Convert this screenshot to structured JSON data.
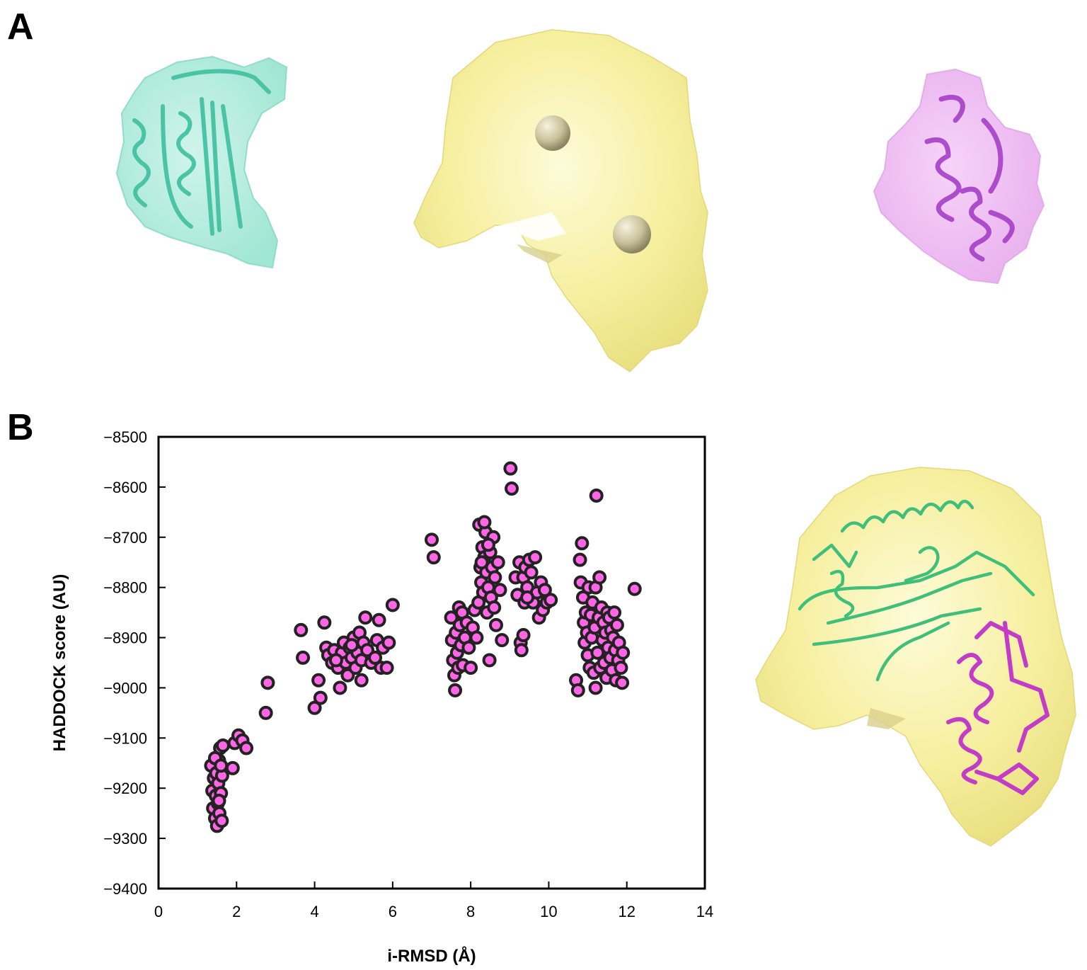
{
  "panels": {
    "a_label": "A",
    "b_label": "B"
  },
  "colors": {
    "teal_protein": "#5fd3b9",
    "density_map": "#f6f0a8",
    "magenta_protein": "#e07de6",
    "point_fill": "#ff66e6",
    "point_stroke": "#222222",
    "green_ribbon": "#3fbf7a",
    "magenta_ribbon": "#c23cc8"
  },
  "chart_data": {
    "type": "scatter",
    "xlabel": "i-RMSD (Å)",
    "ylabel": "HADDOCK score (AU)",
    "xlim": [
      0,
      14
    ],
    "ylim": [
      -9400,
      -8500
    ],
    "x_ticks": [
      "0",
      "2",
      "4",
      "6",
      "8",
      "10",
      "12",
      "14"
    ],
    "y_ticks": [
      "−8500",
      "−8600",
      "−8700",
      "−8800",
      "−8900",
      "−9000",
      "−9100",
      "−9200",
      "−9300",
      "−9400"
    ],
    "grid": false,
    "series": [
      {
        "points": [
          [
            1.35,
            -9155
          ],
          [
            1.38,
            -9205
          ],
          [
            1.4,
            -9240
          ],
          [
            1.42,
            -9180
          ],
          [
            1.45,
            -9260
          ],
          [
            1.47,
            -9215
          ],
          [
            1.48,
            -9170
          ],
          [
            1.5,
            -9275
          ],
          [
            1.52,
            -9230
          ],
          [
            1.53,
            -9190
          ],
          [
            1.55,
            -9145
          ],
          [
            1.56,
            -9250
          ],
          [
            1.58,
            -9120
          ],
          [
            1.6,
            -9210
          ],
          [
            1.62,
            -9265
          ],
          [
            1.63,
            -9175
          ],
          [
            1.65,
            -9115
          ],
          [
            1.45,
            -9140
          ],
          [
            1.55,
            -9225
          ],
          [
            1.6,
            -9155
          ],
          [
            1.9,
            -9160
          ],
          [
            1.95,
            -9110
          ],
          [
            2.05,
            -9095
          ],
          [
            2.15,
            -9105
          ],
          [
            2.25,
            -9120
          ],
          [
            2.75,
            -9050
          ],
          [
            2.8,
            -8990
          ],
          [
            3.65,
            -8885
          ],
          [
            3.7,
            -8940
          ],
          [
            4.0,
            -9040
          ],
          [
            4.1,
            -8985
          ],
          [
            4.15,
            -9020
          ],
          [
            4.25,
            -8870
          ],
          [
            4.3,
            -8920
          ],
          [
            4.35,
            -8935
          ],
          [
            4.45,
            -8950
          ],
          [
            4.5,
            -8925
          ],
          [
            4.6,
            -8960
          ],
          [
            4.65,
            -9000
          ],
          [
            4.7,
            -8930
          ],
          [
            4.75,
            -8910
          ],
          [
            4.8,
            -8950
          ],
          [
            4.85,
            -8975
          ],
          [
            4.9,
            -8920
          ],
          [
            4.95,
            -8940
          ],
          [
            5.0,
            -8900
          ],
          [
            5.05,
            -8960
          ],
          [
            5.1,
            -8930
          ],
          [
            5.15,
            -8890
          ],
          [
            5.2,
            -8945
          ],
          [
            5.25,
            -8910
          ],
          [
            5.3,
            -8860
          ],
          [
            5.35,
            -8925
          ],
          [
            5.45,
            -8950
          ],
          [
            5.55,
            -8940
          ],
          [
            5.6,
            -8905
          ],
          [
            5.65,
            -8865
          ],
          [
            5.7,
            -8960
          ],
          [
            5.75,
            -8920
          ],
          [
            5.85,
            -8960
          ],
          [
            5.9,
            -8910
          ],
          [
            6.0,
            -8835
          ],
          [
            4.55,
            -8945
          ],
          [
            4.95,
            -8915
          ],
          [
            5.2,
            -8985
          ],
          [
            7.0,
            -8705
          ],
          [
            7.05,
            -8740
          ],
          [
            7.5,
            -8860
          ],
          [
            7.52,
            -8905
          ],
          [
            7.55,
            -8945
          ],
          [
            7.58,
            -8975
          ],
          [
            7.6,
            -9005
          ],
          [
            7.62,
            -8890
          ],
          [
            7.65,
            -8930
          ],
          [
            7.68,
            -8960
          ],
          [
            7.7,
            -8840
          ],
          [
            7.72,
            -8875
          ],
          [
            7.75,
            -8915
          ],
          [
            7.78,
            -8850
          ],
          [
            7.8,
            -8955
          ],
          [
            7.85,
            -8900
          ],
          [
            7.9,
            -8870
          ],
          [
            7.95,
            -8920
          ],
          [
            8.0,
            -8960
          ],
          [
            8.05,
            -8880
          ],
          [
            8.1,
            -8845
          ],
          [
            8.15,
            -8900
          ],
          [
            8.2,
            -8830
          ],
          [
            8.22,
            -8675
          ],
          [
            8.25,
            -8760
          ],
          [
            8.27,
            -8790
          ],
          [
            8.3,
            -8720
          ],
          [
            8.32,
            -8810
          ],
          [
            8.35,
            -8740
          ],
          [
            8.38,
            -8690
          ],
          [
            8.4,
            -8770
          ],
          [
            8.42,
            -8850
          ],
          [
            8.45,
            -8800
          ],
          [
            8.48,
            -8945
          ],
          [
            8.5,
            -8730
          ],
          [
            8.52,
            -8820
          ],
          [
            8.55,
            -8760
          ],
          [
            8.58,
            -8700
          ],
          [
            8.6,
            -8840
          ],
          [
            8.62,
            -8780
          ],
          [
            8.65,
            -8875
          ],
          [
            8.7,
            -8750
          ],
          [
            8.75,
            -8805
          ],
          [
            8.8,
            -8905
          ],
          [
            8.35,
            -8670
          ],
          [
            8.28,
            -8750
          ],
          [
            8.45,
            -8715
          ],
          [
            9.02,
            -8563
          ],
          [
            9.05,
            -8603
          ],
          [
            9.15,
            -8780
          ],
          [
            9.2,
            -8815
          ],
          [
            9.25,
            -8750
          ],
          [
            9.28,
            -8910
          ],
          [
            9.3,
            -8925
          ],
          [
            9.35,
            -8780
          ],
          [
            9.38,
            -8830
          ],
          [
            9.4,
            -8760
          ],
          [
            9.45,
            -8800
          ],
          [
            9.5,
            -8745
          ],
          [
            9.55,
            -8770
          ],
          [
            9.6,
            -8830
          ],
          [
            9.65,
            -8740
          ],
          [
            9.7,
            -8810
          ],
          [
            9.75,
            -8860
          ],
          [
            9.8,
            -8790
          ],
          [
            9.85,
            -8845
          ],
          [
            9.9,
            -8805
          ],
          [
            9.95,
            -8830
          ],
          [
            10.05,
            -8825
          ],
          [
            9.35,
            -8895
          ],
          [
            9.45,
            -8820
          ],
          [
            10.7,
            -8985
          ],
          [
            10.75,
            -9005
          ],
          [
            10.8,
            -8745
          ],
          [
            10.82,
            -8790
          ],
          [
            10.85,
            -8712
          ],
          [
            10.88,
            -8820
          ],
          [
            10.9,
            -8870
          ],
          [
            10.92,
            -8910
          ],
          [
            10.95,
            -8850
          ],
          [
            10.98,
            -8890
          ],
          [
            11.0,
            -8935
          ],
          [
            11.02,
            -8800
          ],
          [
            11.05,
            -8960
          ],
          [
            11.08,
            -8855
          ],
          [
            11.1,
            -8900
          ],
          [
            11.12,
            -8830
          ],
          [
            11.15,
            -8970
          ],
          [
            11.18,
            -8880
          ],
          [
            11.2,
            -8800
          ],
          [
            11.22,
            -8617
          ],
          [
            11.25,
            -8930
          ],
          [
            11.28,
            -8860
          ],
          [
            11.3,
            -8780
          ],
          [
            11.32,
            -8960
          ],
          [
            11.35,
            -8840
          ],
          [
            11.38,
            -8905
          ],
          [
            11.4,
            -8870
          ],
          [
            11.42,
            -8950
          ],
          [
            11.45,
            -8890
          ],
          [
            11.48,
            -8980
          ],
          [
            11.5,
            -8850
          ],
          [
            11.52,
            -8920
          ],
          [
            11.55,
            -8860
          ],
          [
            11.58,
            -8940
          ],
          [
            11.6,
            -8885
          ],
          [
            11.62,
            -8965
          ],
          [
            11.65,
            -8900
          ],
          [
            11.68,
            -8850
          ],
          [
            11.7,
            -8925
          ],
          [
            11.72,
            -8985
          ],
          [
            11.75,
            -8875
          ],
          [
            11.78,
            -8945
          ],
          [
            11.8,
            -8910
          ],
          [
            11.85,
            -8960
          ],
          [
            11.88,
            -8990
          ],
          [
            11.9,
            -8930
          ],
          [
            11.2,
            -9000
          ],
          [
            12.2,
            -8803
          ]
        ]
      }
    ]
  }
}
